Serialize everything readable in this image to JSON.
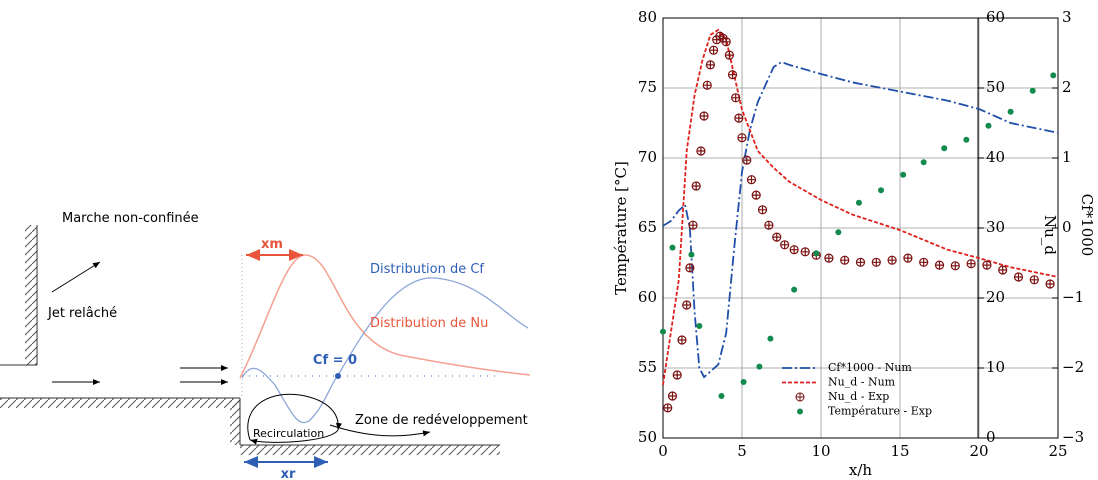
{
  "diagram": {
    "title": "Marche non-confinée",
    "jet": "Jet relâché",
    "xm": "xm",
    "xr": "xr",
    "cf_label": "Distribution de Cf",
    "nu_label": "Distribution de Nu",
    "cf_zero": "Cf = 0",
    "recirculation": "Recirculation",
    "redevelopment": "Zone de redéveloppement"
  },
  "chart_data": {
    "type": "line",
    "xlabel": "x/h",
    "ylabel": "Température [°C]",
    "y2label": "Nu_d",
    "y3label": "Cf*1000",
    "xlim": [
      0,
      25
    ],
    "xticks": [
      0,
      5,
      10,
      15,
      20,
      25
    ],
    "ylim": [
      50,
      80
    ],
    "yticks": [
      50,
      55,
      60,
      65,
      70,
      75,
      80
    ],
    "y2lim": [
      0,
      60
    ],
    "y2ticks": [
      0,
      10,
      20,
      30,
      40,
      50,
      60
    ],
    "y3lim": [
      -3,
      3
    ],
    "y3ticks": [
      {
        "value": -3,
        "label": "−3"
      },
      {
        "value": -2,
        "label": "−2"
      },
      {
        "value": -1,
        "label": "−1"
      },
      0,
      1,
      2,
      3
    ],
    "grid": true,
    "legend": "lower center",
    "series": [
      {
        "name": "Cf*1000 - Num",
        "color": "#1f4fa8",
        "style": "dash-dot",
        "axis": "y3",
        "x": [
          0,
          0.5,
          1,
          1.4,
          1.7,
          2,
          2.3,
          2.6,
          3,
          3.5,
          4,
          4.5,
          5,
          5.5,
          6,
          7,
          7.5,
          8,
          10,
          12,
          15,
          18,
          20,
          22,
          25
        ],
        "values": [
          0.03,
          0.1,
          0.25,
          0.33,
          0.0,
          -1.2,
          -2.0,
          -2.13,
          -2.05,
          -1.95,
          -1.5,
          -0.3,
          0.8,
          1.4,
          1.8,
          2.3,
          2.37,
          2.33,
          2.2,
          2.08,
          1.95,
          1.82,
          1.7,
          1.5,
          1.36
        ]
      },
      {
        "name": "Nu_d - Num",
        "color": "#e0201b",
        "style": "dashed",
        "axis": "y2",
        "x": [
          0,
          1,
          1.5,
          2,
          2.5,
          3,
          3.5,
          4,
          4.5,
          5,
          6,
          7,
          8,
          10,
          12,
          15,
          18,
          20,
          22,
          25
        ],
        "values": [
          7.6,
          22.6,
          41,
          49,
          54,
          57.6,
          58.3,
          56.9,
          51.9,
          46.9,
          41,
          38.6,
          36.6,
          34,
          31.9,
          29.7,
          26.9,
          25.7,
          24.4,
          23
        ]
      },
      {
        "name": "Nu_d - Exp",
        "color": "#7a1010",
        "style": "circle-cross",
        "axis": "y2",
        "x": [
          0.3,
          0.6,
          0.9,
          1.2,
          1.5,
          1.7,
          1.9,
          2.1,
          2.4,
          2.6,
          2.8,
          3,
          3.2,
          3.4,
          3.6,
          3.8,
          4,
          4.2,
          4.4,
          4.6,
          4.8,
          5,
          5.3,
          5.6,
          5.9,
          6.3,
          6.7,
          7.2,
          7.7,
          8.3,
          9,
          9.7,
          10.5,
          11.5,
          12.5,
          13.5,
          14.5,
          15.5,
          16.5,
          17.5,
          18.5,
          19.5,
          20.5,
          21.5,
          22.5,
          23.5,
          24.5
        ],
        "values": [
          4.3,
          6,
          9,
          14,
          19,
          24.3,
          30.4,
          36,
          41,
          46,
          50.4,
          53.3,
          55.4,
          56.9,
          57.4,
          57.1,
          56.6,
          54.7,
          51.9,
          48.6,
          45.7,
          42.9,
          39.7,
          36.9,
          34.7,
          32.6,
          30.4,
          28.7,
          27.6,
          26.9,
          26.6,
          26.1,
          25.7,
          25.4,
          25.1,
          25.1,
          25.4,
          25.7,
          25.1,
          24.7,
          24.6,
          24.9,
          24.7,
          24,
          23,
          22.6,
          22
        ]
      },
      {
        "name": "Température - Exp",
        "color": "#138a4e",
        "style": "dot",
        "axis": "y",
        "x": [
          0,
          0.6,
          1.8,
          2.3,
          3.7,
          5.1,
          6.1,
          6.8,
          8.3,
          9.7,
          11.1,
          12.4,
          13.8,
          15.2,
          16.5,
          17.8,
          19.2,
          20.6,
          22,
          23.4,
          24.7
        ],
        "values": [
          57.6,
          63.6,
          63.1,
          58,
          53,
          54,
          55.1,
          57.1,
          60.6,
          63.2,
          64.7,
          66.8,
          67.7,
          68.8,
          69.7,
          70.7,
          71.3,
          72.3,
          73.3,
          74.8,
          75.9
        ]
      }
    ]
  }
}
